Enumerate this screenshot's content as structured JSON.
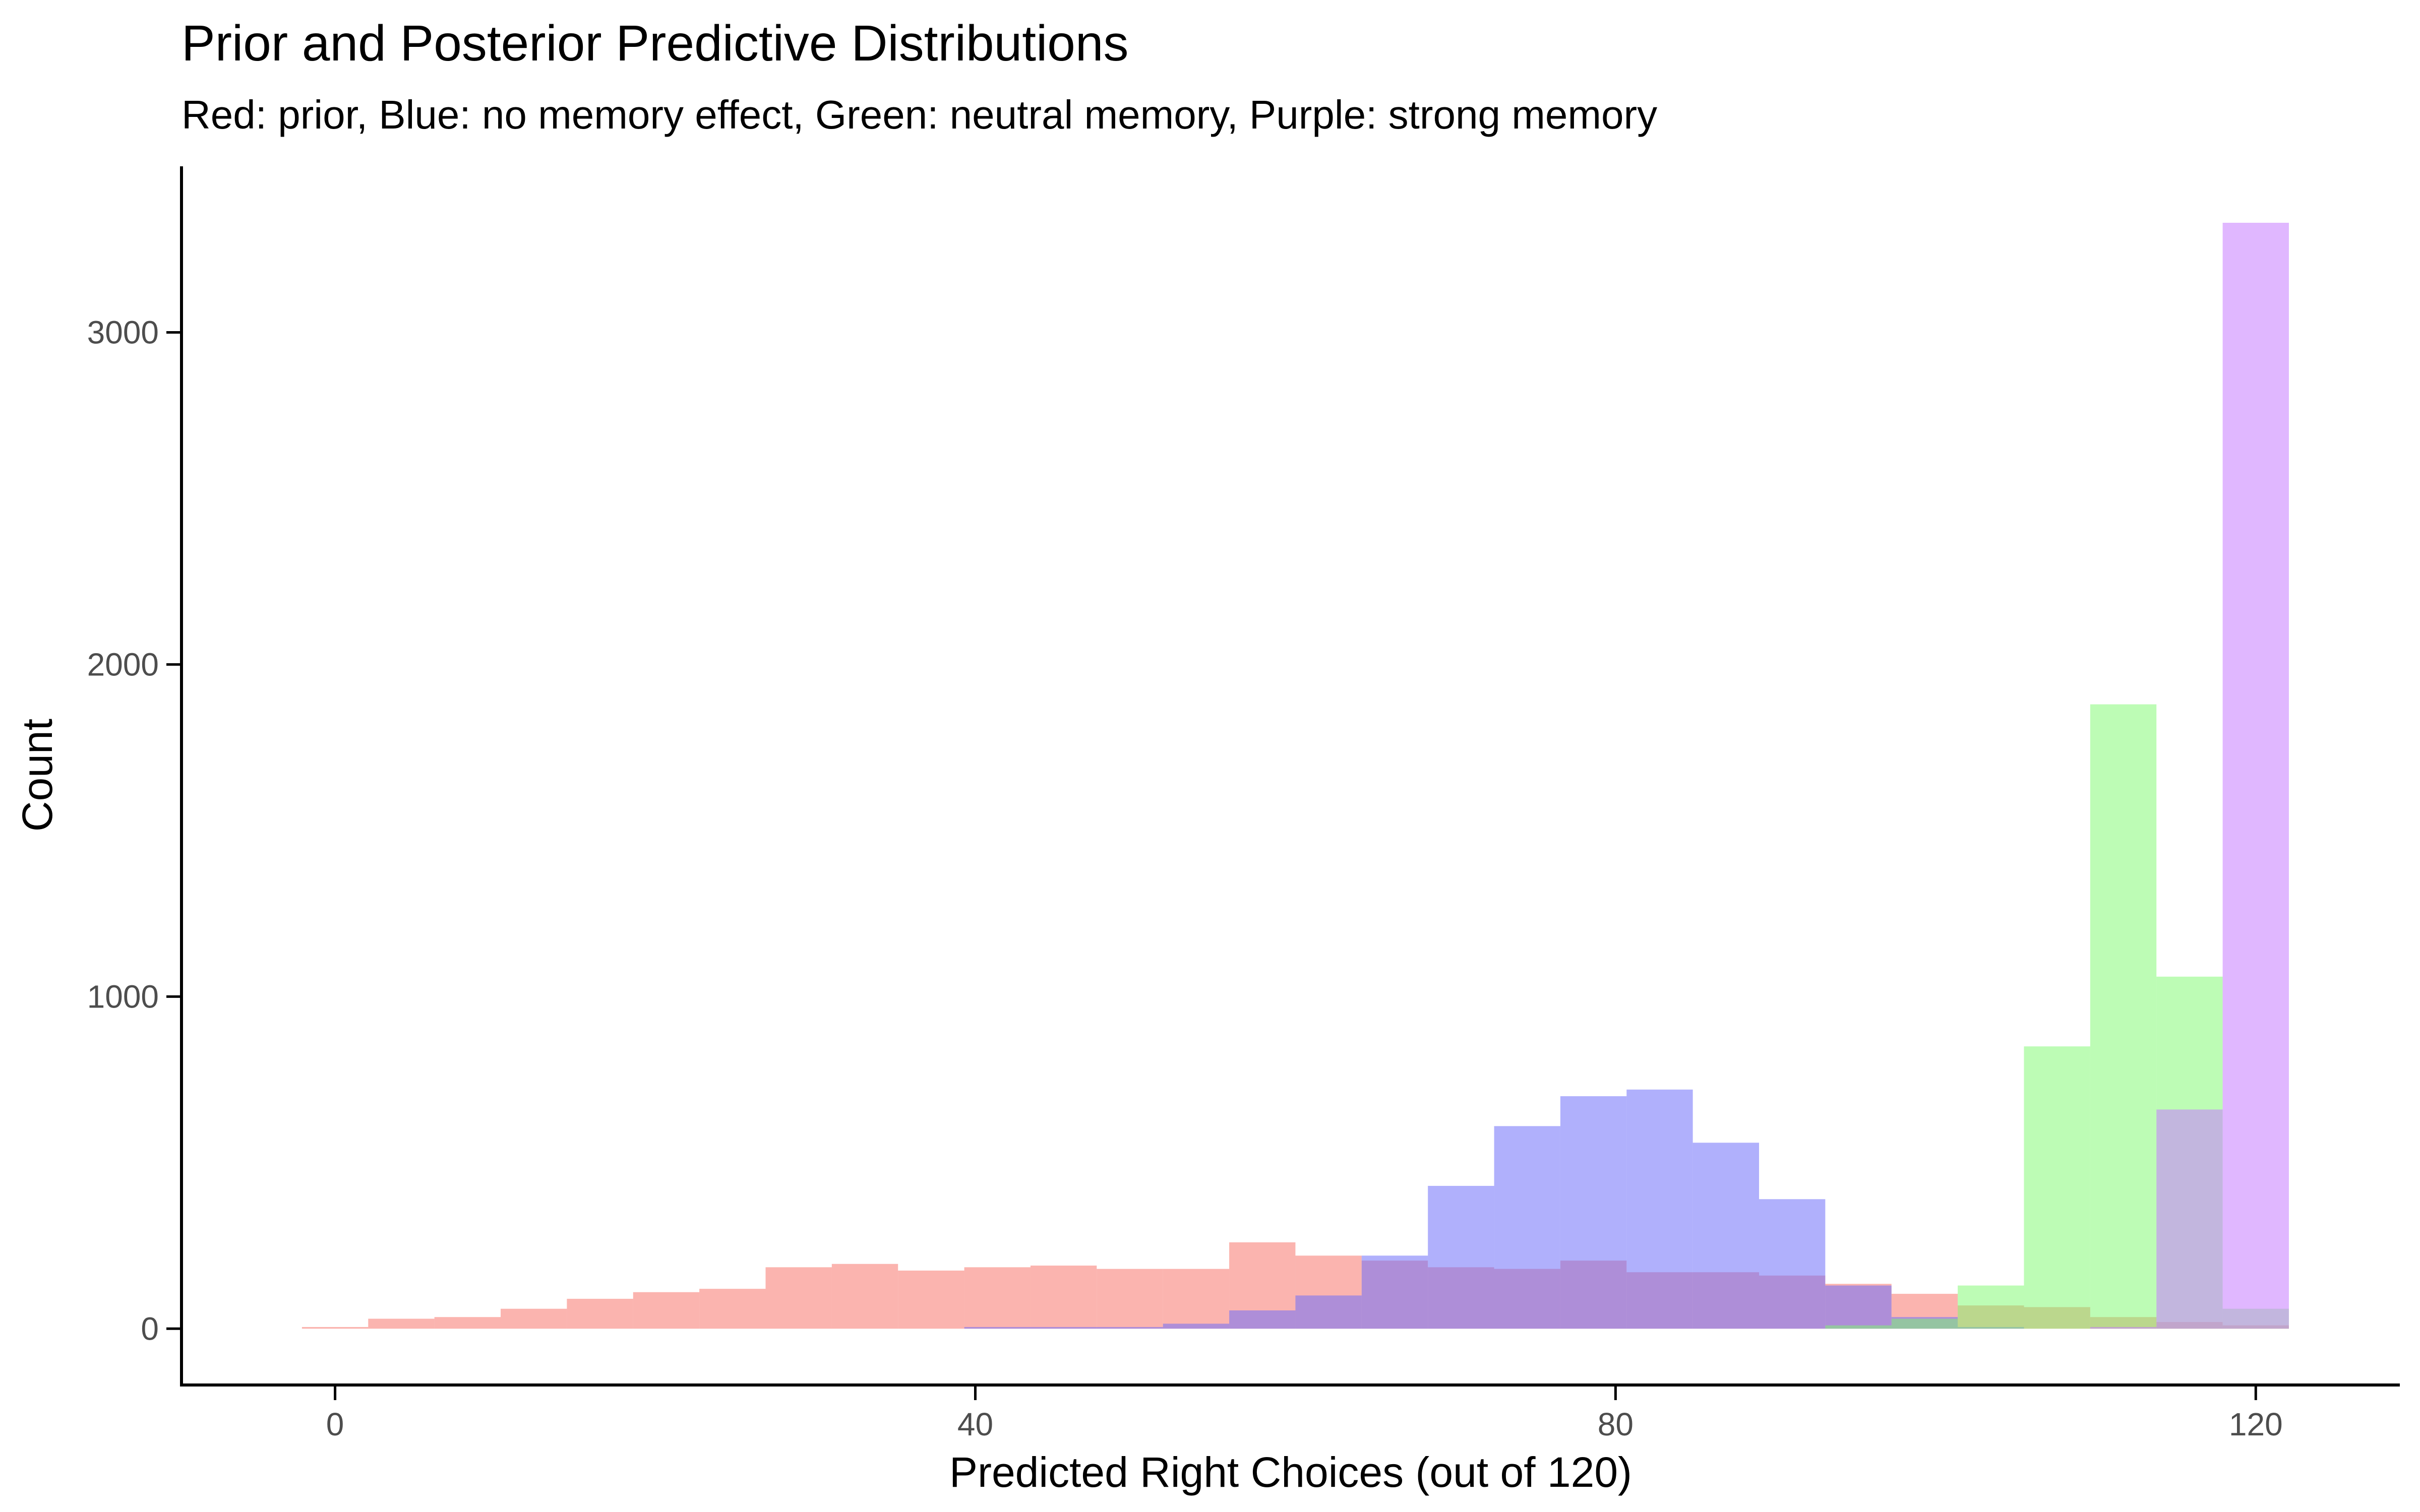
{
  "chart_data": {
    "type": "bar",
    "title": "Prior and Posterior Predictive Distributions",
    "subtitle": "Red: prior, Blue: no memory effect, Green: neutral memory, Purple: strong memory",
    "xlabel": "Predicted Right Choices (out of 120)",
    "ylabel": "Count",
    "xlim": [
      -9.5,
      129
    ],
    "ylim": [
      -165,
      3500
    ],
    "xticks": [
      0,
      40,
      80,
      120
    ],
    "xtick_labels": [
      "0",
      "40",
      "80",
      "120"
    ],
    "yticks": [
      0,
      1000,
      2000,
      3000
    ],
    "ytick_labels": [
      "0",
      "1000",
      "2000",
      "3000"
    ],
    "grid": false,
    "legend": "none",
    "bin_width": 4.138,
    "bin_centers": [
      0,
      4.138,
      8.276,
      12.414,
      16.552,
      20.69,
      24.828,
      28.966,
      33.103,
      37.241,
      41.379,
      45.517,
      49.655,
      53.793,
      57.931,
      62.069,
      66.207,
      70.345,
      74.483,
      78.621,
      82.759,
      86.897,
      91.034,
      95.172,
      99.31,
      103.448,
      107.586,
      111.724,
      115.862,
      120
    ],
    "series": [
      {
        "name": "prior",
        "color": "#f8766d",
        "opacity": 0.55,
        "values": [
          5,
          30,
          35,
          60,
          90,
          110,
          120,
          185,
          195,
          175,
          185,
          190,
          180,
          180,
          260,
          220,
          205,
          185,
          180,
          205,
          170,
          170,
          160,
          135,
          105,
          70,
          65,
          35,
          20,
          10
        ]
      },
      {
        "name": "no memory effect",
        "color": "#6f6ffa",
        "opacity": 0.55,
        "values": [
          0,
          0,
          0,
          0,
          0,
          0,
          0,
          0,
          0,
          0,
          5,
          5,
          5,
          15,
          55,
          100,
          220,
          430,
          610,
          700,
          720,
          560,
          390,
          130,
          35,
          5,
          0,
          0,
          0,
          0
        ]
      },
      {
        "name": "neutral memory",
        "color": "#7bfa6b",
        "opacity": 0.5,
        "values": [
          0,
          0,
          0,
          0,
          0,
          0,
          0,
          0,
          0,
          0,
          0,
          0,
          0,
          0,
          0,
          0,
          0,
          0,
          0,
          0,
          0,
          0,
          0,
          10,
          30,
          130,
          850,
          1880,
          1060,
          60
        ]
      },
      {
        "name": "strong memory",
        "color": "#c77cff",
        "opacity": 0.55,
        "values": [
          0,
          0,
          0,
          0,
          0,
          0,
          0,
          0,
          0,
          0,
          0,
          0,
          0,
          0,
          0,
          0,
          0,
          0,
          0,
          0,
          0,
          0,
          0,
          0,
          0,
          0,
          0,
          5,
          660,
          3330
        ]
      }
    ]
  }
}
